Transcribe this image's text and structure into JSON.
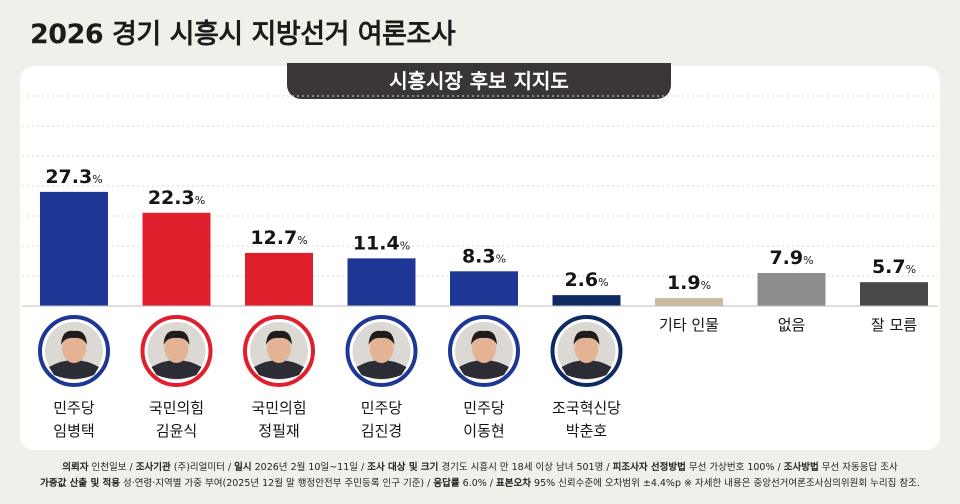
{
  "title": "2026 경기 시흥시 지방선거 여론조사",
  "subtitle": "시흥시장 후보 지지도",
  "colors": {
    "minju": "#1e3794",
    "kukmin": "#e01f2c",
    "joguk": "#0d2a63",
    "other": "#c9b99e",
    "none": "#8d8d8d",
    "dunno": "#4a4848"
  },
  "chart_data": {
    "type": "bar",
    "unit": "%",
    "ylim": [
      0,
      30
    ],
    "bars": [
      {
        "party": "민주당",
        "name": "임병택",
        "value": 27.3,
        "color_key": "minju",
        "photo": true
      },
      {
        "party": "국민의힘",
        "name": "김윤식",
        "value": 22.3,
        "color_key": "kukmin",
        "photo": true
      },
      {
        "party": "국민의힘",
        "name": "정필재",
        "value": 12.7,
        "color_key": "kukmin",
        "photo": true
      },
      {
        "party": "민주당",
        "name": "김진경",
        "value": 11.4,
        "color_key": "minju",
        "photo": true
      },
      {
        "party": "민주당",
        "name": "이동현",
        "value": 8.3,
        "color_key": "minju",
        "photo": true
      },
      {
        "party": "조국혁신당",
        "name": "박춘호",
        "value": 2.6,
        "color_key": "joguk",
        "photo": true
      },
      {
        "party": "",
        "name": "기타 인물",
        "value": 1.9,
        "color_key": "other",
        "photo": false
      },
      {
        "party": "",
        "name": "없음",
        "value": 7.9,
        "color_key": "none",
        "photo": false
      },
      {
        "party": "",
        "name": "잘 모름",
        "value": 5.7,
        "color_key": "dunno",
        "photo": false
      }
    ]
  },
  "footer": {
    "line1": [
      {
        "k": "의뢰자",
        "v": "인천일보"
      },
      {
        "k": "조사기관",
        "v": "(주)리얼미터"
      },
      {
        "k": "일시",
        "v": "2026년 2월 10일~11일"
      },
      {
        "k": "조사 대상 및 크기",
        "v": "경기도 시흥시 만 18세 이상 남녀 501명"
      },
      {
        "k": "피조사자 선정방법",
        "v": "무선 가상번호 100%"
      },
      {
        "k": "조사방법",
        "v": "무선 자동응답 조사"
      }
    ],
    "line2": [
      {
        "k": "가중값 산출 및 적용",
        "v": "성·연령·지역별 가중 부여(2025년 12월 말 행정안전부 주민등록 인구 기준)"
      },
      {
        "k": "응답률",
        "v": "6.0%"
      },
      {
        "k": "표본오차",
        "v": "95% 신뢰수준에 오차범위 ±4.4%p"
      }
    ],
    "note": "※ 자세한 내용은 중앙선거여론조사심의위원회 누리집 참조."
  }
}
